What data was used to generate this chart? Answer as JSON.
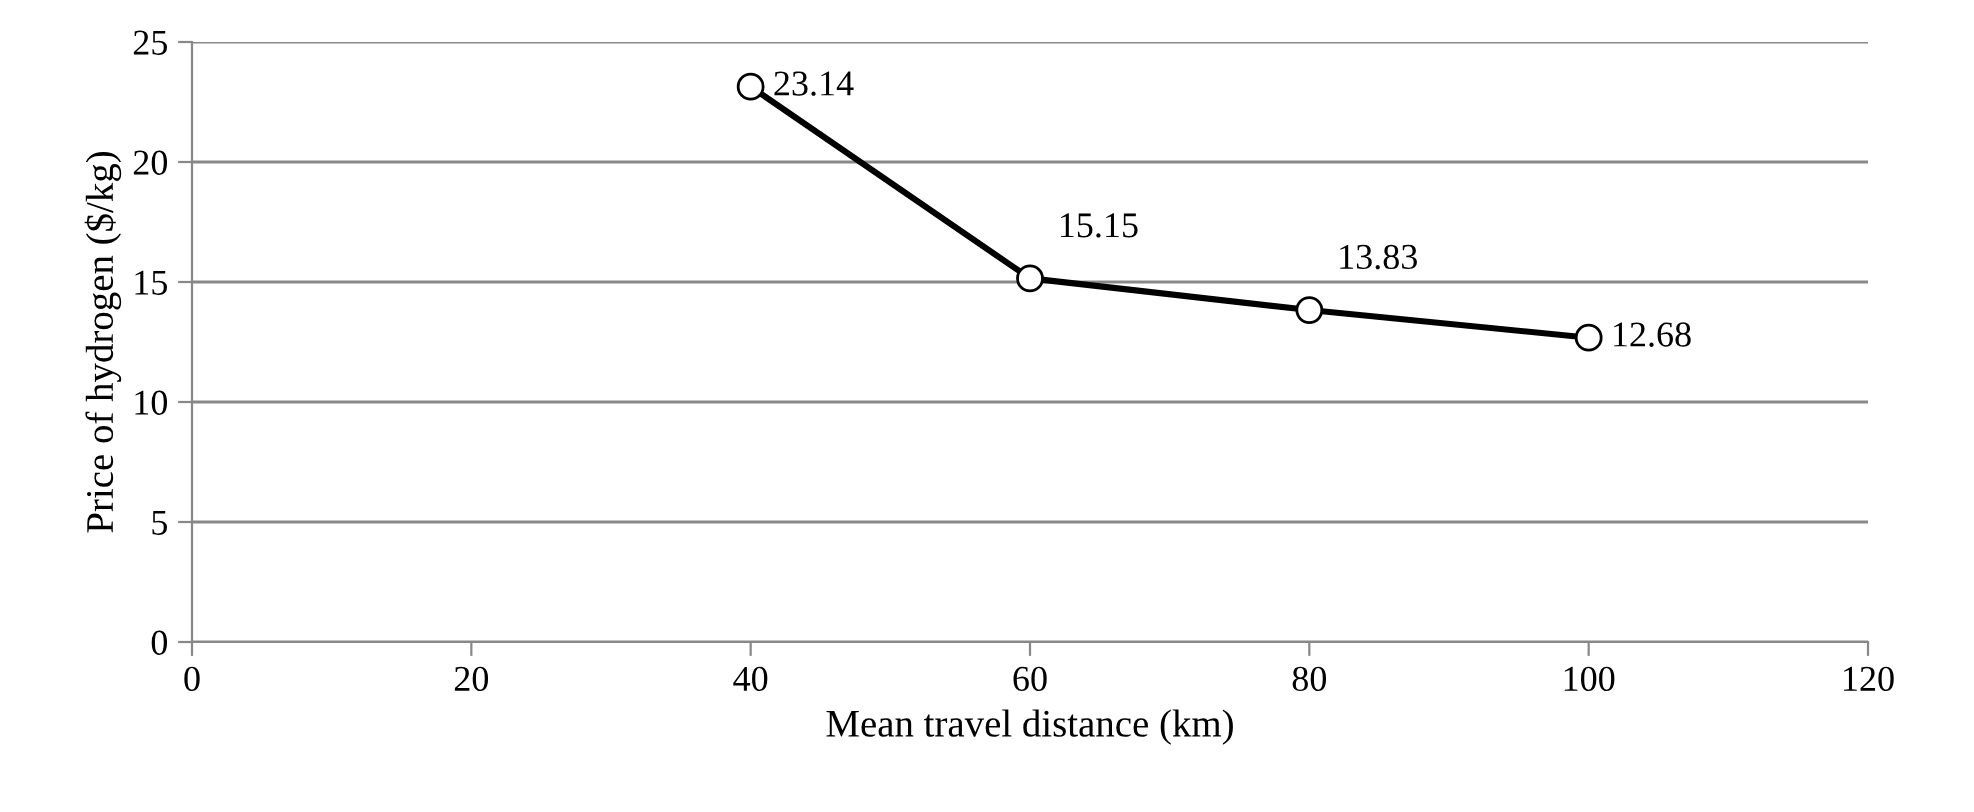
{
  "chart_data": {
    "type": "line",
    "xlabel": "Mean travel distance (km)",
    "ylabel": "Price of hydrogen ($/kg)",
    "x": [
      40,
      60,
      80,
      100
    ],
    "series": [
      {
        "color": "#000000",
        "values": [
          23.14,
          15.15,
          13.83,
          12.68
        ]
      }
    ],
    "xlim": [
      0,
      120
    ],
    "xticks": [
      0,
      20,
      40,
      60,
      80,
      100,
      120
    ],
    "ylim": [
      0,
      25
    ],
    "yticks": [
      0,
      5,
      10,
      15,
      20,
      25
    ],
    "grid": "y",
    "marker": "circle",
    "line_style": "solid",
    "data_labels": true,
    "legend": false
  }
}
